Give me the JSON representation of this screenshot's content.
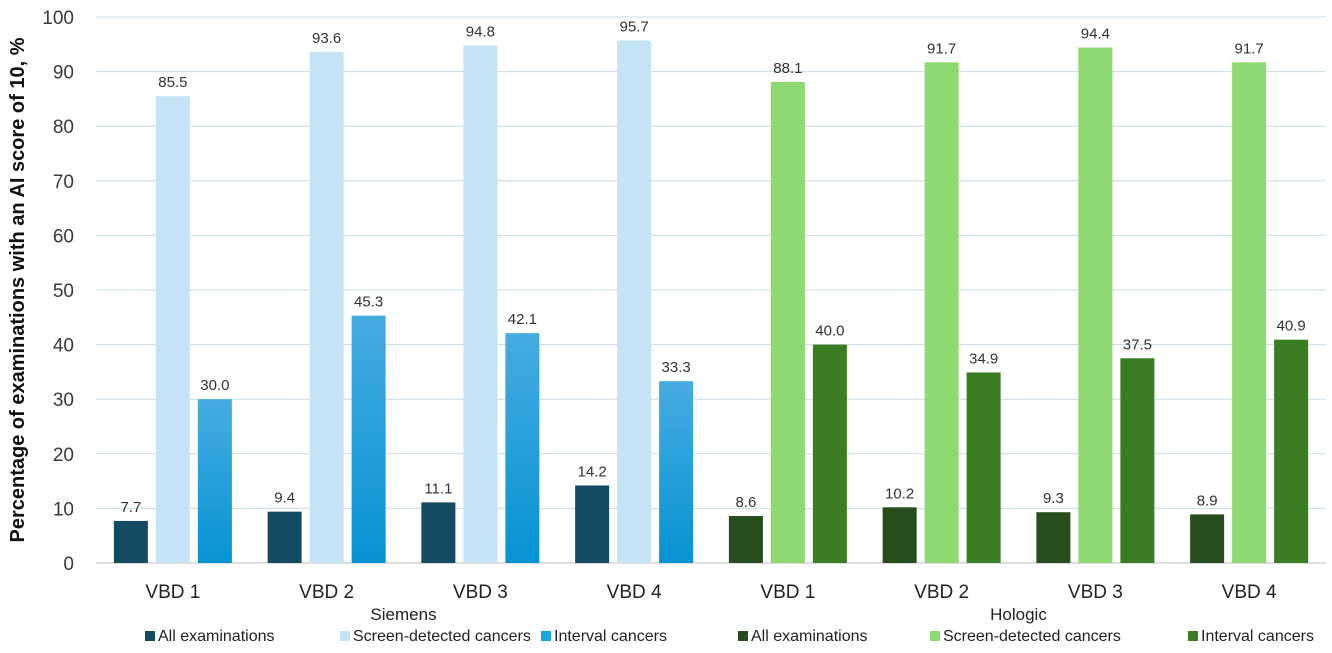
{
  "chart_data": {
    "type": "bar",
    "ylabel": "Percentage of examinations with an AI score of 10, %",
    "ylim": [
      0,
      100
    ],
    "yticks": [
      0,
      10,
      20,
      30,
      40,
      50,
      60,
      70,
      80,
      90,
      100
    ],
    "grid": true,
    "legend_position": "bottom",
    "groups": [
      {
        "name": "Siemens",
        "categories": [
          "VBD 1",
          "VBD 2",
          "VBD 3",
          "VBD 4"
        ],
        "series": [
          {
            "name": "All examinations",
            "color": "#154a63",
            "values": [
              7.7,
              9.4,
              11.1,
              14.2
            ]
          },
          {
            "name": "Screen-detected cancers",
            "color": "#c4e4f5",
            "values": [
              85.5,
              93.6,
              94.8,
              95.7
            ]
          },
          {
            "name": "Interval cancers",
            "color": "#1da4dc",
            "gradient_top": "#46ace0",
            "gradient_bottom": "#0693d3",
            "values": [
              30.0,
              45.3,
              42.1,
              33.3
            ]
          }
        ]
      },
      {
        "name": "Hologic",
        "categories": [
          "VBD 1",
          "VBD 2",
          "VBD 3",
          "VBD 4"
        ],
        "series": [
          {
            "name": "All examinations",
            "color": "#264d1b",
            "values": [
              8.6,
              10.2,
              9.3,
              8.9
            ]
          },
          {
            "name": "Screen-detected cancers",
            "color": "#8ed971",
            "values": [
              88.1,
              91.7,
              94.4,
              91.7
            ]
          },
          {
            "name": "Interval cancers",
            "color": "#3a7d23",
            "values": [
              40.0,
              34.9,
              37.5,
              40.9
            ]
          }
        ]
      }
    ]
  }
}
